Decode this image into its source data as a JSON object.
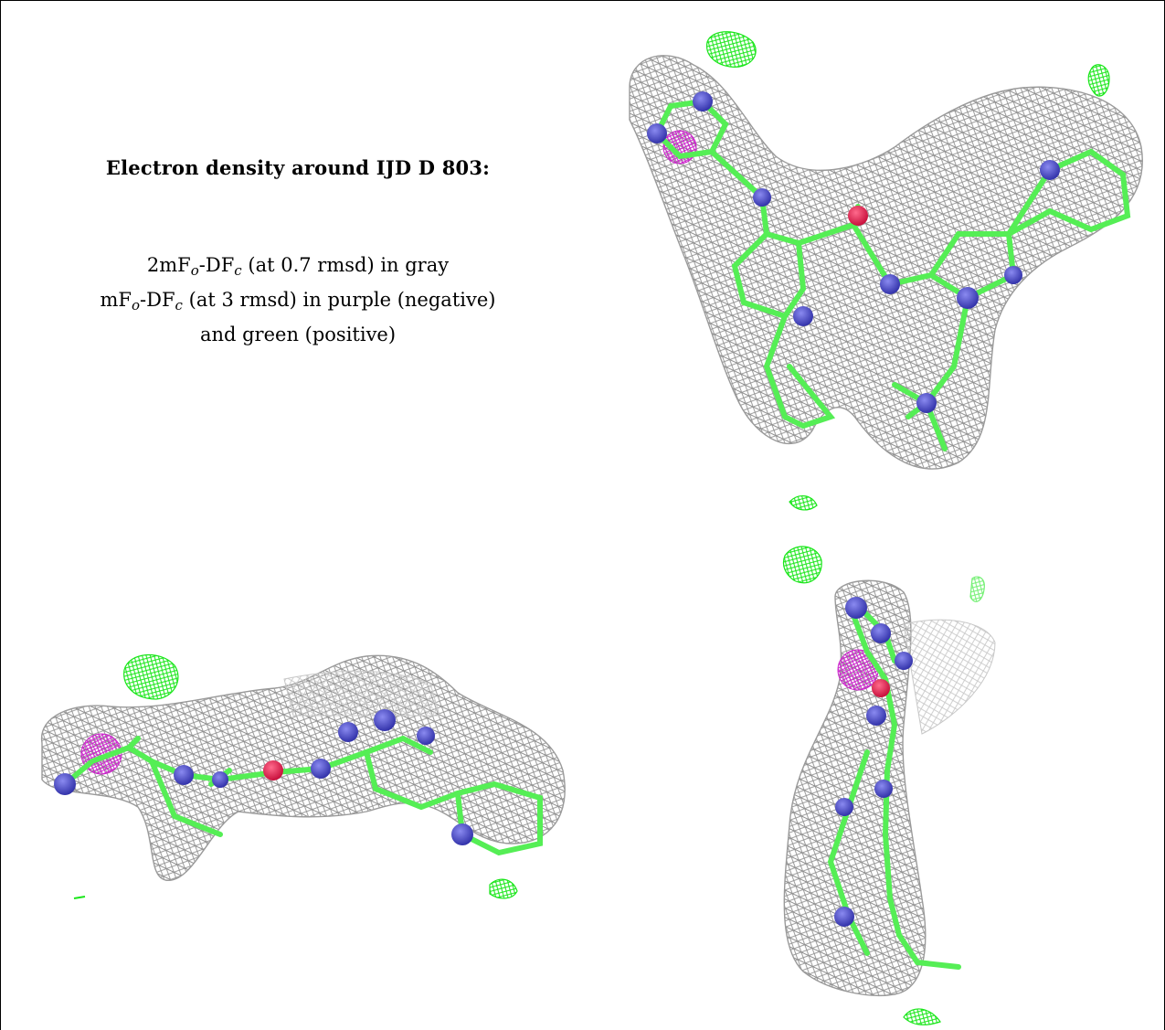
{
  "legend": {
    "title": "Electron density around IJD D 803:",
    "line1_prefix": "2mF",
    "line1_sub1": "o",
    "line1_mid": "-DF",
    "line1_sub2": "c",
    "line1_suffix": " (at 0.7 rmsd) in gray",
    "line2_prefix": "mF",
    "line2_sub1": "o",
    "line2_mid": "-DF",
    "line2_sub2": "c",
    "line2_suffix": " (at 3 rmsd) in purple (negative)",
    "line3": "and green (positive)"
  },
  "colors": {
    "mesh_2fofc": "#8c8c8c",
    "mesh_positive": "#19e619",
    "mesh_negative": "#cc22cc",
    "carbon": "#55ee55",
    "nitrogen": "#4848c8",
    "oxygen": "#ee2255"
  },
  "panels": [
    {
      "name": "view-front",
      "icon": "molecule-density-front-view-icon"
    },
    {
      "name": "view-side",
      "icon": "molecule-density-side-view-icon"
    },
    {
      "name": "view-end",
      "icon": "molecule-density-end-view-icon"
    }
  ]
}
